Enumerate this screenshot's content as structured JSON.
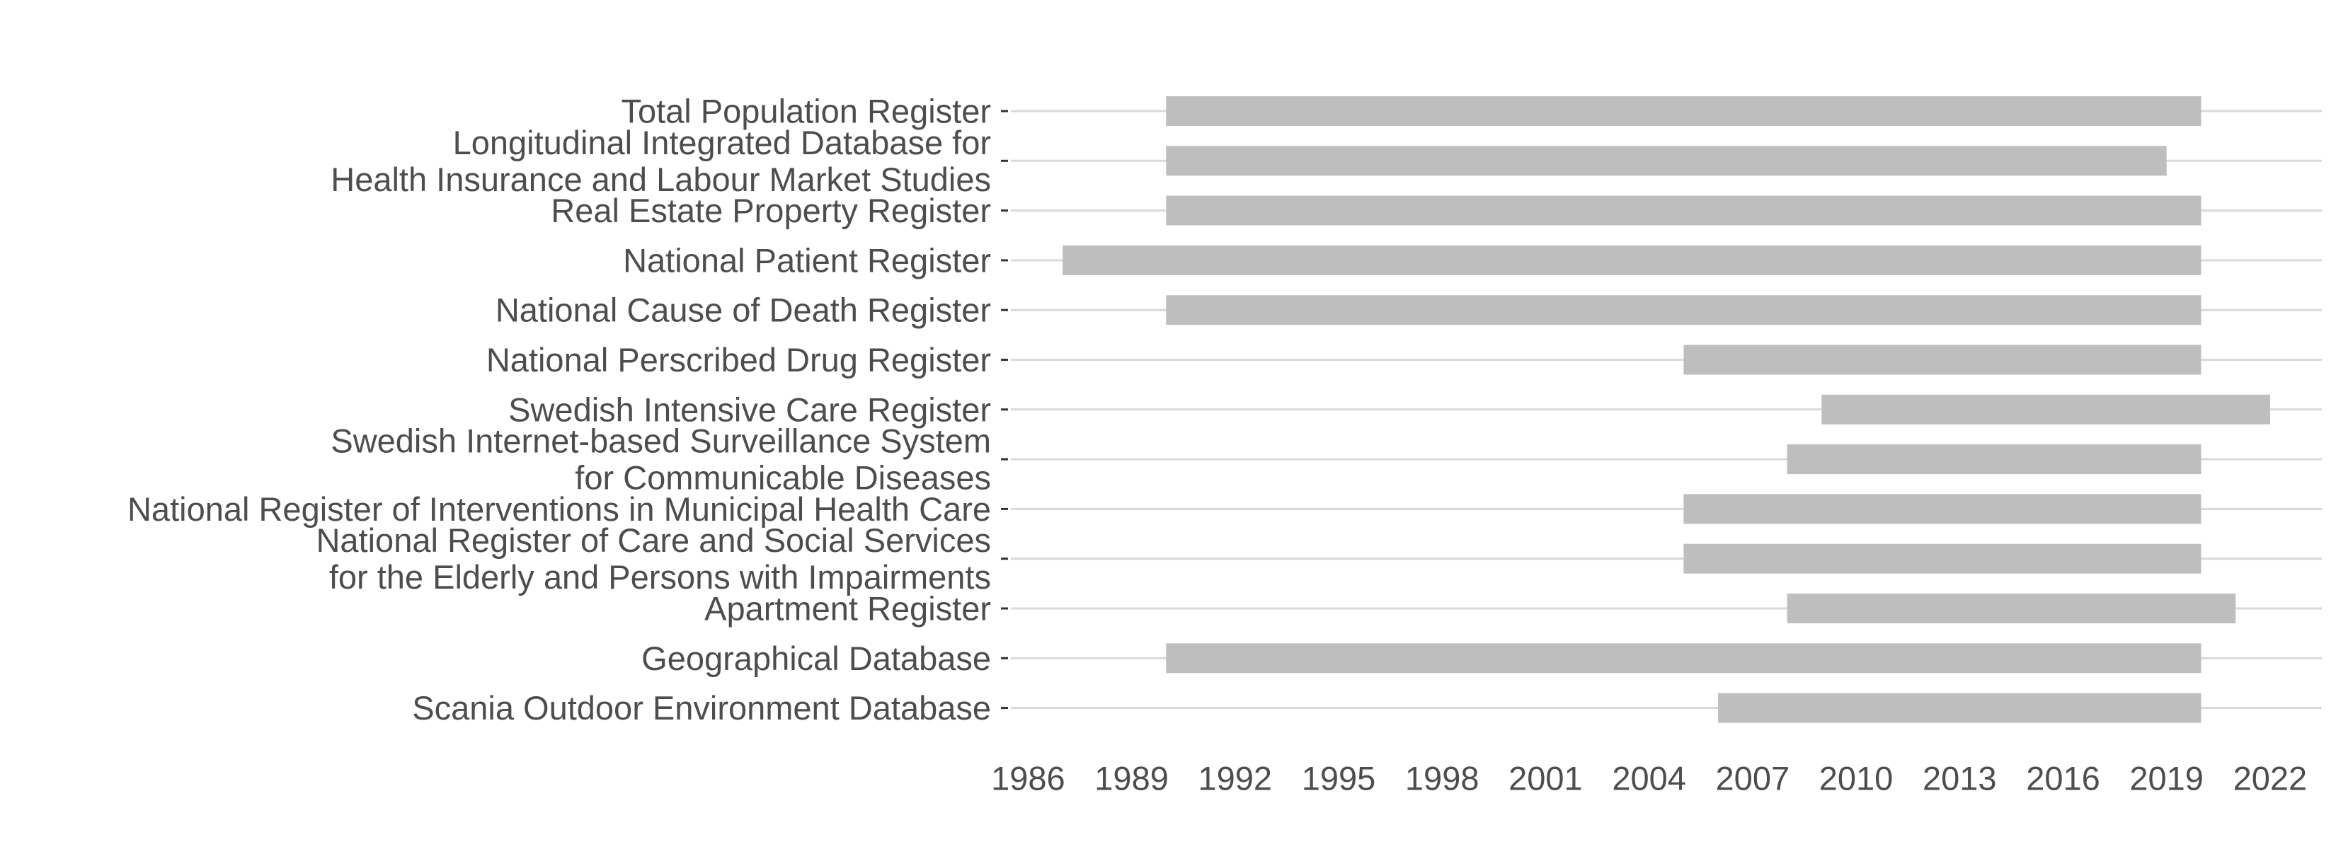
{
  "chart_data": {
    "type": "bar",
    "orientation": "horizontal",
    "title": "",
    "xlabel": "",
    "ylabel": "",
    "xlim": [
      1985.5,
      2023.5
    ],
    "x_ticks": [
      1986,
      1989,
      1992,
      1995,
      1998,
      2001,
      2004,
      2007,
      2010,
      2013,
      2016,
      2019,
      2022
    ],
    "x_tick_labels": [
      "1986",
      "1989",
      "1992",
      "1995",
      "1998",
      "2001",
      "2004",
      "2007",
      "2010",
      "2013",
      "2016",
      "2019",
      "2022"
    ],
    "grid": "horizontal",
    "colors": {
      "bar": "#bebebe",
      "grid": "#d9d9d9",
      "text": "#4d4d4d",
      "tick": "#333333"
    },
    "categories": [
      {
        "label_lines": [
          "Total Population Register"
        ],
        "start": 1990,
        "end": 2020
      },
      {
        "label_lines": [
          "Longitudinal Integrated Database for",
          "Health Insurance and Labour Market Studies"
        ],
        "start": 1990,
        "end": 2019
      },
      {
        "label_lines": [
          "Real Estate Property Register"
        ],
        "start": 1990,
        "end": 2020
      },
      {
        "label_lines": [
          "National Patient Register"
        ],
        "start": 1987,
        "end": 2020
      },
      {
        "label_lines": [
          "National Cause of Death Register"
        ],
        "start": 1990,
        "end": 2020
      },
      {
        "label_lines": [
          "National Perscribed Drug Register"
        ],
        "start": 2005,
        "end": 2020
      },
      {
        "label_lines": [
          "Swedish Intensive Care Register"
        ],
        "start": 2009,
        "end": 2022
      },
      {
        "label_lines": [
          "Swedish Internet-based Surveillance System",
          "for Communicable Diseases"
        ],
        "start": 2008,
        "end": 2020
      },
      {
        "label_lines": [
          "National Register of Interventions in Municipal Health Care"
        ],
        "start": 2005,
        "end": 2020
      },
      {
        "label_lines": [
          "National Register of Care and Social Services",
          "for the Elderly and Persons with Impairments"
        ],
        "start": 2005,
        "end": 2020
      },
      {
        "label_lines": [
          "Apartment Register"
        ],
        "start": 2008,
        "end": 2021
      },
      {
        "label_lines": [
          "Geographical Database"
        ],
        "start": 1990,
        "end": 2020
      },
      {
        "label_lines": [
          "Scania Outdoor Environment Database"
        ],
        "start": 2006,
        "end": 2020
      }
    ]
  }
}
